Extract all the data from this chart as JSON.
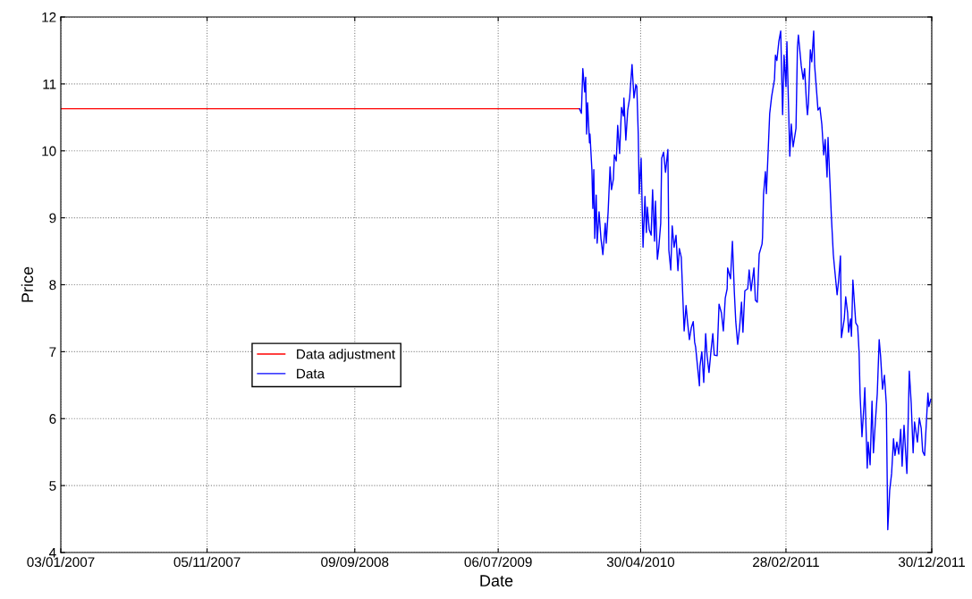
{
  "chart_data": {
    "type": "line",
    "xlabel": "Date",
    "ylabel": "Price",
    "xlim": [
      "2007-01-03",
      "2011-12-30"
    ],
    "xticks": [
      {
        "value": "2007-01-03",
        "label": "03/01/2007"
      },
      {
        "value": "2007-11-05",
        "label": "05/11/2007"
      },
      {
        "value": "2008-09-09",
        "label": "09/09/2008"
      },
      {
        "value": "2009-07-06",
        "label": "06/07/2009"
      },
      {
        "value": "2010-04-30",
        "label": "30/04/2010"
      },
      {
        "value": "2011-02-28",
        "label": "28/02/2011"
      },
      {
        "value": "2011-12-30",
        "label": "30/12/2011"
      }
    ],
    "ylim": [
      4,
      12
    ],
    "yticks": [
      4,
      5,
      6,
      7,
      8,
      9,
      10,
      11,
      12
    ],
    "grid": true,
    "legend": "center",
    "line_style": "solid",
    "marker": "none",
    "series": [
      {
        "name": "Data adjustment",
        "color": "#ff0000",
        "x": [
          "2007-01-03",
          "2009-12-23"
        ],
        "values": [
          10.63,
          10.63
        ]
      },
      {
        "name": "Data",
        "color": "#0000ff",
        "x": [
          "2009-12-23",
          "2009-12-27",
          "2009-12-30",
          "2010-01-03",
          "2010-01-05",
          "2010-01-07",
          "2010-01-09",
          "2010-01-13",
          "2010-01-14",
          "2010-01-18",
          "2010-01-20",
          "2010-01-22",
          "2010-01-24",
          "2010-01-27",
          "2010-01-29",
          "2010-02-02",
          "2010-02-06",
          "2010-02-10",
          "2010-02-15",
          "2010-02-17",
          "2010-02-21",
          "2010-02-25",
          "2010-02-28",
          "2010-03-04",
          "2010-03-06",
          "2010-03-10",
          "2010-03-13",
          "2010-03-17",
          "2010-03-21",
          "2010-03-25",
          "2010-03-26",
          "2010-03-30",
          "2010-04-03",
          "2010-04-07",
          "2010-04-12",
          "2010-04-16",
          "2010-04-20",
          "2010-04-22",
          "2010-04-25",
          "2010-04-27",
          "2010-05-01",
          "2010-05-05",
          "2010-05-09",
          "2010-05-12",
          "2010-05-14",
          "2010-05-18",
          "2010-05-22",
          "2010-05-25",
          "2010-05-29",
          "2010-05-31",
          "2010-06-04",
          "2010-06-07",
          "2010-06-11",
          "2010-06-13",
          "2010-06-17",
          "2010-06-21",
          "2010-06-26",
          "2010-06-28",
          "2010-07-02",
          "2010-07-05",
          "2010-07-09",
          "2010-07-13",
          "2010-07-17",
          "2010-07-20",
          "2010-07-24",
          "2010-07-30",
          "2010-08-03",
          "2010-08-06",
          "2010-08-10",
          "2010-08-14",
          "2010-08-18",
          "2010-08-21",
          "2010-08-23",
          "2010-08-27",
          "2010-08-31",
          "2010-09-01",
          "2010-09-05",
          "2010-09-09",
          "2010-09-13",
          "2010-09-16",
          "2010-09-20",
          "2010-09-24",
          "2010-09-28",
          "2010-10-01",
          "2010-10-07",
          "2010-10-11",
          "2010-10-16",
          "2010-10-20",
          "2010-10-24",
          "2010-10-28",
          "2010-10-29",
          "2010-11-04",
          "2010-11-08",
          "2010-11-12",
          "2010-11-15",
          "2010-11-19",
          "2010-11-23",
          "2010-11-27",
          "2010-11-30",
          "2010-12-04",
          "2010-12-10",
          "2010-12-13",
          "2010-12-17",
          "2010-12-23",
          "2010-12-26",
          "2010-12-30",
          "2011-01-03",
          "2011-01-09",
          "2011-01-10",
          "2011-01-12",
          "2011-01-16",
          "2011-01-18",
          "2011-01-22",
          "2011-01-25",
          "2011-01-29",
          "2011-02-04",
          "2011-02-06",
          "2011-02-09",
          "2011-02-13",
          "2011-02-17",
          "2011-02-21",
          "2011-02-24",
          "2011-02-28",
          "2011-03-02",
          "2011-03-08",
          "2011-03-11",
          "2011-03-15",
          "2011-03-21",
          "2011-03-24",
          "2011-03-26",
          "2011-04-01",
          "2011-04-05",
          "2011-04-08",
          "2011-04-12",
          "2011-04-14",
          "2011-04-16",
          "2011-04-20",
          "2011-04-23",
          "2011-04-27",
          "2011-04-29",
          "2011-05-03",
          "2011-05-06",
          "2011-05-10",
          "2011-05-14",
          "2011-05-18",
          "2011-05-21",
          "2011-05-25",
          "2011-05-27",
          "2011-05-31",
          "2011-06-03",
          "2011-06-07",
          "2011-06-09",
          "2011-06-15",
          "2011-06-18",
          "2011-06-22",
          "2011-06-24",
          "2011-06-30",
          "2011-07-03",
          "2011-07-07",
          "2011-07-09",
          "2011-07-13",
          "2011-07-15",
          "2011-07-18",
          "2011-07-24",
          "2011-07-28",
          "2011-07-31",
          "2011-08-02",
          "2011-08-06",
          "2011-08-10",
          "2011-08-12",
          "2011-08-17",
          "2011-08-19",
          "2011-08-23",
          "2011-08-27",
          "2011-08-30",
          "2011-09-03",
          "2011-09-07",
          "2011-09-11",
          "2011-09-14",
          "2011-09-18",
          "2011-09-22",
          "2011-09-26",
          "2011-09-29",
          "2011-10-03",
          "2011-10-07",
          "2011-10-11",
          "2011-10-14",
          "2011-10-18",
          "2011-10-22",
          "2011-10-26",
          "2011-10-29",
          "2011-11-02",
          "2011-11-08",
          "2011-11-09",
          "2011-11-13",
          "2011-11-17",
          "2011-11-21",
          "2011-11-24",
          "2011-11-30",
          "2011-12-04",
          "2011-12-08",
          "2011-12-11",
          "2011-12-15",
          "2011-12-19",
          "2011-12-22",
          "2011-12-24",
          "2011-12-28"
        ],
        "values": [
          10.63,
          10.56,
          11.23,
          10.88,
          11.1,
          10.25,
          10.72,
          10.12,
          10.25,
          9.72,
          9.14,
          9.72,
          8.69,
          9.34,
          8.62,
          9.09,
          8.69,
          8.45,
          8.92,
          8.62,
          9.09,
          9.76,
          9.42,
          9.58,
          9.94,
          9.85,
          10.38,
          9.96,
          10.65,
          10.52,
          10.79,
          10.16,
          10.61,
          10.79,
          11.29,
          10.79,
          10.99,
          10.96,
          10.25,
          9.36,
          9.89,
          8.56,
          9.32,
          8.78,
          9.16,
          8.82,
          8.74,
          9.42,
          8.65,
          9.25,
          8.38,
          8.56,
          8.92,
          9.89,
          9.98,
          9.68,
          10.02,
          8.52,
          8.22,
          8.88,
          8.56,
          8.74,
          8.21,
          8.54,
          8.41,
          7.31,
          7.69,
          7.45,
          7.18,
          7.36,
          7.45,
          7.14,
          7.07,
          6.78,
          6.49,
          6.78,
          7.0,
          6.54,
          7.27,
          6.94,
          6.69,
          7.0,
          7.27,
          6.95,
          6.94,
          7.71,
          7.58,
          7.31,
          7.8,
          7.94,
          8.25,
          8.09,
          8.65,
          7.89,
          7.45,
          7.11,
          7.36,
          7.74,
          7.29,
          7.91,
          7.94,
          8.22,
          7.91,
          8.25,
          7.77,
          7.74,
          8.46,
          8.61,
          8.71,
          9.34,
          9.69,
          9.36,
          10.04,
          10.56,
          10.81,
          11.07,
          11.43,
          11.35,
          11.63,
          11.79,
          10.54,
          11.43,
          10.96,
          11.63,
          9.92,
          10.4,
          10.06,
          10.34,
          11.55,
          11.73,
          11.27,
          11.07,
          11.23,
          10.71,
          10.54,
          10.71,
          11.51,
          11.33,
          11.79,
          11.27,
          10.9,
          10.61,
          10.65,
          10.4,
          9.94,
          10.17,
          9.61,
          10.2,
          9.53,
          9.02,
          8.46,
          8.3,
          7.85,
          8.05,
          8.43,
          7.21,
          7.49,
          7.82,
          7.58,
          7.29,
          7.49,
          7.23,
          8.07,
          7.43,
          7.38,
          6.99,
          6.37,
          5.73,
          6.18,
          6.46,
          5.26,
          5.65,
          5.31,
          6.26,
          5.49,
          5.95,
          6.37,
          7.18,
          6.93,
          6.44,
          6.65,
          6.21,
          4.34,
          4.93,
          5.18,
          5.7,
          5.45,
          5.65,
          5.47,
          5.84,
          5.29,
          5.9,
          5.18,
          5.45,
          6.71,
          6.23,
          5.49,
          5.95,
          5.65,
          6.01,
          5.85,
          5.51,
          5.45,
          5.98,
          6.38,
          6.18,
          6.29
        ]
      }
    ]
  }
}
